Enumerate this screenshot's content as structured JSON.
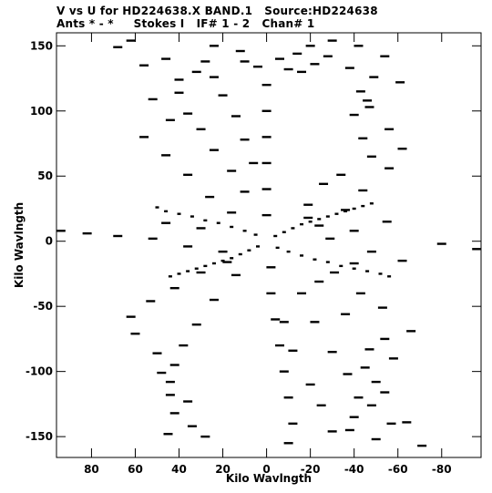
{
  "header": {
    "line1": "V vs U for HD224638.X BAND.1   Source:HD224638",
    "line2": "Ants * - *     Stokes I   IF# 1 - 2   Chan# 1"
  },
  "chart_data": {
    "type": "scatter",
    "title": "V vs U for HD224638.X BAND.1   Source:HD224638",
    "subtitle": "Ants * - *     Stokes I   IF# 1 - 2   Chan# 1",
    "xlabel": "Kilo Wavlngth",
    "ylabel": "Kilo Wavlngth",
    "xlim": [
      96,
      -98
    ],
    "ylim": [
      -166,
      160
    ],
    "x_reversed": true,
    "grid": false,
    "x_ticks": [
      80,
      60,
      40,
      20,
      0,
      -20,
      -40,
      -60,
      -80
    ],
    "x_tick_labels": [
      "80",
      "60",
      "40",
      "20",
      "0",
      "-20",
      "-40",
      "-60",
      "-80"
    ],
    "y_ticks": [
      150,
      100,
      50,
      0,
      -50,
      -100,
      -150
    ],
    "y_tick_labels": [
      "150",
      "100",
      "50",
      "0",
      "-50",
      "-100",
      "-150"
    ],
    "marker": "short-dash",
    "color": "#000000",
    "series": [
      {
        "points": [
          [
            -19,
            18
          ],
          [
            -19,
            28
          ],
          [
            -26,
            44
          ],
          [
            -34,
            51
          ],
          [
            -48,
            65
          ],
          [
            -44,
            79
          ],
          [
            -40,
            97
          ],
          [
            -46,
            108
          ],
          [
            -43,
            115
          ],
          [
            -49,
            126
          ],
          [
            -54,
            142
          ],
          [
            -42,
            150
          ],
          [
            -24,
            12
          ],
          [
            -36,
            24
          ],
          [
            -44,
            39
          ],
          [
            -56,
            56
          ],
          [
            -62,
            71
          ],
          [
            -56,
            86
          ],
          [
            -47,
            103
          ],
          [
            -61,
            122
          ],
          [
            -38,
            133
          ],
          [
            -29,
            2
          ],
          [
            -40,
            8
          ],
          [
            -55,
            15
          ],
          [
            -80,
            -2
          ],
          [
            -96,
            -6
          ],
          [
            -48,
            -8
          ],
          [
            -62,
            -15
          ],
          [
            -40,
            -17
          ],
          [
            -31,
            -24
          ],
          [
            -43,
            -40
          ],
          [
            -53,
            -51
          ],
          [
            -66,
            -69
          ],
          [
            -47,
            -83
          ],
          [
            -45,
            -97
          ],
          [
            -54,
            -116
          ],
          [
            -64,
            -139
          ],
          [
            -71,
            -157
          ],
          [
            -24,
            -31
          ],
          [
            -36,
            -56
          ],
          [
            -54,
            -75
          ],
          [
            -58,
            -90
          ],
          [
            -50,
            -108
          ],
          [
            -48,
            -126
          ],
          [
            -57,
            -140
          ],
          [
            -38,
            -145
          ],
          [
            -16,
            -40
          ],
          [
            -22,
            -62
          ],
          [
            -30,
            -85
          ],
          [
            -37,
            -102
          ],
          [
            -42,
            -120
          ],
          [
            -40,
            -135
          ],
          [
            -50,
            -152
          ],
          [
            -8,
            -62
          ],
          [
            -12,
            -84
          ],
          [
            -20,
            -110
          ],
          [
            -25,
            -126
          ],
          [
            -30,
            -146
          ],
          [
            18,
            -16
          ],
          [
            30,
            -24
          ],
          [
            42,
            -36
          ],
          [
            53,
            -46
          ],
          [
            62,
            -58
          ],
          [
            60,
            -71
          ],
          [
            50,
            -86
          ],
          [
            48,
            -101
          ],
          [
            44,
            -118
          ],
          [
            42,
            -132
          ],
          [
            45,
            -148
          ],
          [
            14,
            -26
          ],
          [
            24,
            -45
          ],
          [
            32,
            -64
          ],
          [
            38,
            -80
          ],
          [
            42,
            -95
          ],
          [
            44,
            -108
          ],
          [
            36,
            -123
          ],
          [
            34,
            -142
          ],
          [
            28,
            -150
          ],
          [
            20,
            -8
          ],
          [
            36,
            -4
          ],
          [
            52,
            2
          ],
          [
            68,
            4
          ],
          [
            82,
            6
          ],
          [
            94,
            8
          ],
          [
            46,
            14
          ],
          [
            30,
            10
          ],
          [
            16,
            22
          ],
          [
            26,
            34
          ],
          [
            36,
            51
          ],
          [
            46,
            66
          ],
          [
            56,
            80
          ],
          [
            44,
            93
          ],
          [
            52,
            109
          ],
          [
            40,
            124
          ],
          [
            56,
            135
          ],
          [
            68,
            149
          ],
          [
            62,
            154
          ],
          [
            10,
            38
          ],
          [
            16,
            54
          ],
          [
            24,
            70
          ],
          [
            30,
            86
          ],
          [
            36,
            98
          ],
          [
            40,
            114
          ],
          [
            32,
            130
          ],
          [
            46,
            140
          ],
          [
            6,
            60
          ],
          [
            10,
            78
          ],
          [
            14,
            96
          ],
          [
            20,
            112
          ],
          [
            24,
            126
          ],
          [
            28,
            138
          ],
          [
            0,
            20
          ],
          [
            0,
            40
          ],
          [
            0,
            60
          ],
          [
            0,
            80
          ],
          [
            0,
            100
          ],
          [
            0,
            120
          ],
          [
            -2,
            -20
          ],
          [
            -2,
            -40
          ],
          [
            -4,
            -60
          ],
          [
            -6,
            -80
          ],
          [
            -8,
            -100
          ],
          [
            -10,
            -120
          ],
          [
            -12,
            -140
          ],
          [
            -10,
            -155
          ],
          [
            -10,
            132
          ],
          [
            -16,
            130
          ],
          [
            -22,
            136
          ],
          [
            -28,
            142
          ],
          [
            4,
            134
          ],
          [
            10,
            138
          ],
          [
            -6,
            140
          ],
          [
            -14,
            144
          ],
          [
            -20,
            150
          ],
          [
            -30,
            154
          ],
          [
            12,
            146
          ],
          [
            24,
            150
          ]
        ]
      },
      {
        "points": [
          [
            -4,
            4
          ],
          [
            -8,
            7
          ],
          [
            -12,
            10
          ],
          [
            -16,
            13
          ],
          [
            -20,
            15
          ],
          [
            -24,
            17
          ],
          [
            -28,
            19
          ],
          [
            -32,
            21
          ],
          [
            -36,
            23
          ],
          [
            -40,
            25
          ],
          [
            -44,
            27
          ],
          [
            -48,
            29
          ],
          [
            4,
            -4
          ],
          [
            8,
            -7
          ],
          [
            12,
            -10
          ],
          [
            16,
            -13
          ],
          [
            20,
            -15
          ],
          [
            24,
            -17
          ],
          [
            28,
            -19
          ],
          [
            32,
            -21
          ],
          [
            36,
            -23
          ],
          [
            40,
            -25
          ],
          [
            44,
            -27
          ],
          [
            -5,
            -5
          ],
          [
            -10,
            -8
          ],
          [
            -16,
            -11
          ],
          [
            -22,
            -14
          ],
          [
            -28,
            -16
          ],
          [
            -34,
            -19
          ],
          [
            -40,
            -21
          ],
          [
            -46,
            -23
          ],
          [
            -52,
            -25
          ],
          [
            -56,
            -27
          ],
          [
            5,
            5
          ],
          [
            10,
            8
          ],
          [
            16,
            11
          ],
          [
            22,
            14
          ],
          [
            28,
            16
          ],
          [
            34,
            19
          ],
          [
            40,
            21
          ],
          [
            46,
            23
          ],
          [
            50,
            26
          ]
        ]
      }
    ]
  }
}
